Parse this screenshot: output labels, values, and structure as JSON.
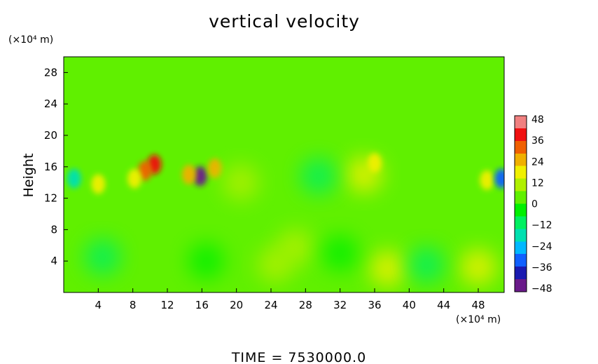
{
  "chart_data": {
    "type": "heatmap",
    "title": "vertical velocity",
    "ylabel": "Height",
    "xunit": "(×10⁴ m)",
    "yunit": "(×10⁴ m)",
    "footer": "TIME = 7530000.0",
    "x_ticks": [
      "4",
      "8",
      "12",
      "16",
      "20",
      "24",
      "28",
      "32",
      "36",
      "40",
      "44",
      "48"
    ],
    "y_ticks": [
      "4",
      "8",
      "12",
      "16",
      "20",
      "24",
      "28"
    ],
    "xlim": [
      0,
      51
    ],
    "ylim": [
      0,
      30
    ],
    "colorbar": {
      "ticks": [
        "48",
        "36",
        "24",
        "12",
        "0",
        "−12",
        "−24",
        "−36",
        "−48"
      ],
      "range": [
        -48,
        48
      ],
      "colors": [
        "#6a1a8a",
        "#1a1ab0",
        "#1060ff",
        "#00b8ff",
        "#00e0b0",
        "#00f060",
        "#00f000",
        "#60f000",
        "#b0f000",
        "#f0f000",
        "#f0b000",
        "#f06000",
        "#f01010",
        "#f08080"
      ]
    },
    "background_value": 0,
    "features": [
      {
        "x": 15.8,
        "y": 14.8,
        "value": -44
      },
      {
        "x": 17.5,
        "y": 15.8,
        "value": 24
      },
      {
        "x": 14.5,
        "y": 15.0,
        "value": 24
      },
      {
        "x": 10.5,
        "y": 16.3,
        "value": 36
      },
      {
        "x": 9.4,
        "y": 15.5,
        "value": 28
      },
      {
        "x": 8.2,
        "y": 14.5,
        "value": 20
      },
      {
        "x": 4.0,
        "y": 13.8,
        "value": 16
      },
      {
        "x": 1.2,
        "y": 14.5,
        "value": -16
      },
      {
        "x": 36.0,
        "y": 16.5,
        "value": 18
      },
      {
        "x": 34.8,
        "y": 15.0,
        "value": 14
      },
      {
        "x": 49.0,
        "y": 14.3,
        "value": 18
      },
      {
        "x": 50.7,
        "y": 14.5,
        "value": -28
      },
      {
        "x": 37.5,
        "y": 3.0,
        "value": 14
      },
      {
        "x": 48.0,
        "y": 3.2,
        "value": 14
      },
      {
        "x": 26.8,
        "y": 5.8,
        "value": 10
      },
      {
        "x": 24.5,
        "y": 3.5,
        "value": 8
      },
      {
        "x": 4.5,
        "y": 4.5,
        "value": -8
      },
      {
        "x": 16.5,
        "y": 4.0,
        "value": -6
      },
      {
        "x": 42.0,
        "y": 3.5,
        "value": -8
      },
      {
        "x": 32.0,
        "y": 5.0,
        "value": -5
      },
      {
        "x": 29.5,
        "y": 14.8,
        "value": -8
      },
      {
        "x": 20.5,
        "y": 14.0,
        "value": 8
      }
    ]
  }
}
